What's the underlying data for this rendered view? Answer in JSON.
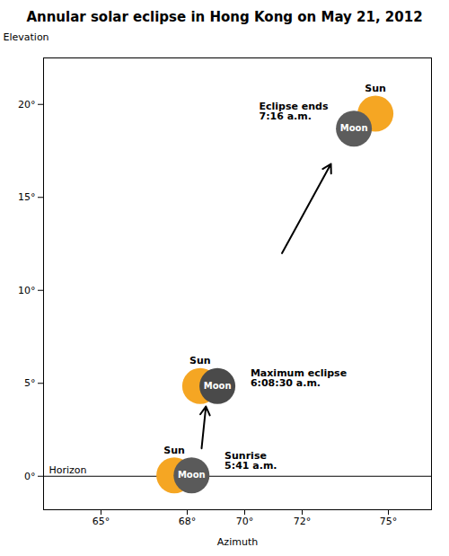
{
  "chart_data": {
    "type": "scatter",
    "title": "Annular solar eclipse in Hong Kong on May 21, 2012",
    "x_label": "Azimuth",
    "y_label": "Elevation",
    "xlim": [
      63.0,
      76.5
    ],
    "ylim": [
      -1.8,
      22.5
    ],
    "xticks": [
      {
        "value": 65,
        "label": "65°"
      },
      {
        "value": 68,
        "label": "68°"
      },
      {
        "value": 70,
        "label": "70°"
      },
      {
        "value": 72,
        "label": "72°"
      },
      {
        "value": 75,
        "label": "75°"
      }
    ],
    "yticks": [
      {
        "value": 0,
        "label": "0°"
      },
      {
        "value": 5,
        "label": "5°"
      },
      {
        "value": 10,
        "label": "10°"
      },
      {
        "value": 15,
        "label": "15°"
      },
      {
        "value": 20,
        "label": "20°"
      }
    ],
    "series": [
      {
        "name": "Sun",
        "color": "#f5a623",
        "x": [
          67.55,
          68.45,
          74.55
        ],
        "values": [
          0.05,
          4.85,
          19.5
        ]
      },
      {
        "name": "Moon",
        "colors": [
          "#5a5a5a",
          "#4a4a4a",
          "#5c5c5c"
        ],
        "x": [
          68.15,
          69.05,
          73.8
        ],
        "values": [
          0.05,
          4.85,
          18.7
        ]
      }
    ],
    "horizon": {
      "y": 0.0,
      "label": "Horizon"
    },
    "annotations": [
      {
        "text": "Sunrise\n5:41 a.m.",
        "x": 69.3,
        "y": 0.38
      },
      {
        "text": "Maximum eclipse\n6:08:30 a.m.",
        "x": 70.2,
        "y": 4.85
      },
      {
        "text": "Eclipse ends\n7:16 a.m.",
        "x": 70.5,
        "y": 19.2
      }
    ],
    "arrows": [
      {
        "x1": 68.5,
        "y1": 1.5,
        "x2": 68.65,
        "y2": 3.75
      },
      {
        "x1": 71.3,
        "y1": 12.0,
        "x2": 73.0,
        "y2": 16.8
      }
    ]
  }
}
